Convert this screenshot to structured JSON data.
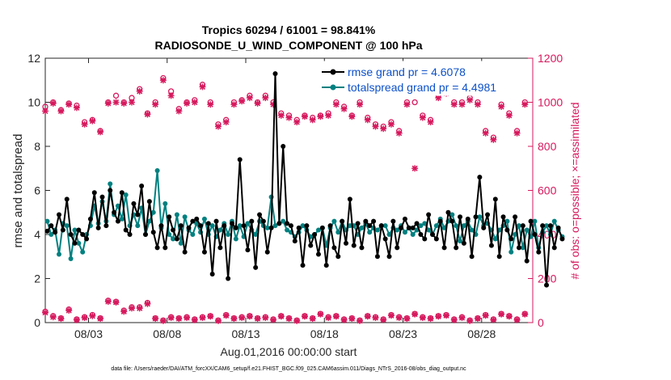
{
  "chart_data": {
    "type": "line",
    "title_line1": "Tropics 60294 / 61001 = 98.841%",
    "title_line2": "RADIOSONDE_U_WIND_COMPONENT @ 100 hPa",
    "xlabel": "Aug.01,2016 00:00:00 start",
    "ylabel_left": "rmse and totalspread",
    "ylabel_right": "# of obs: o=possible; ×=assimilated",
    "footer": "data file: /Users/raeder/DAI/ATM_forcXX/CAM6_setup/f.e21.FHIST_BGC.f09_025.CAM6assim.011/Diags_NTrS_2016-08/obs_diag_output.nc",
    "x_ticks": [
      {
        "t": 2.75,
        "label": "08/03"
      },
      {
        "t": 7.75,
        "label": "08/08"
      },
      {
        "t": 12.75,
        "label": "08/13"
      },
      {
        "t": 17.75,
        "label": "08/18"
      },
      {
        "t": 22.75,
        "label": "08/23"
      },
      {
        "t": 27.75,
        "label": "08/28"
      }
    ],
    "xlim": [
      0.0,
      31.0
    ],
    "ylim_left": [
      0,
      12
    ],
    "yticks_left": [
      0,
      2,
      4,
      6,
      8,
      10,
      12
    ],
    "ylim_right": [
      0,
      1200
    ],
    "yticks_right": [
      0,
      200,
      400,
      600,
      800,
      1000,
      1200
    ],
    "colors": {
      "rmse": "#000000",
      "spread": "#008080",
      "obs": "#d6185c",
      "legend_text": "#0c50c8"
    },
    "series": [
      {
        "name": "rmse grand pr = 4.6078",
        "axis": "left",
        "color": "#000000",
        "values": [
          4.15,
          4.4,
          4.1,
          4.9,
          4.2,
          5.6,
          4.0,
          3.6,
          4.2,
          4.0,
          3.8,
          4.7,
          5.9,
          4.3,
          5.7,
          4.4,
          6.0,
          5.0,
          4.6,
          5.9,
          4.2,
          4.0,
          5.4,
          4.9,
          6.2,
          4.0,
          5.5,
          4.1,
          3.4,
          4.4,
          3.4,
          4.8,
          4.2,
          3.8,
          4.4,
          3.2,
          4.3,
          4.6,
          4.7,
          4.4,
          3.2,
          4.5,
          2.2,
          4.6,
          3.4,
          4.4,
          2.0,
          4.5,
          4.3,
          7.4,
          4.4,
          3.3,
          4.6,
          2.5,
          4.9,
          4.6,
          3.2,
          4.3,
          11.3,
          4.5,
          8.0,
          4.5,
          4.4,
          3.7,
          4.3,
          2.6,
          4.4,
          3.5,
          4.0,
          3.1,
          4.3,
          2.6,
          4.4,
          3.4,
          3.0,
          4.6,
          3.6,
          5.6,
          3.5,
          4.5,
          3.4,
          4.6,
          4.4,
          4.6,
          3.0,
          4.4,
          3.8,
          3.0,
          4.6,
          3.4,
          4.3,
          4.7,
          4.3,
          4.3,
          4.5,
          4.0,
          3.8,
          4.9,
          4.0,
          3.8,
          4.6,
          3.4,
          5.0,
          4.6,
          3.4,
          4.8,
          3.6,
          4.7,
          3.0,
          4.8,
          6.6,
          4.3,
          4.9,
          3.5,
          5.6,
          3.0,
          4.8,
          4.2,
          3.8,
          4.8,
          3.4,
          4.4,
          2.8,
          4.6,
          4.0,
          3.2,
          4.4,
          1.7,
          4.4,
          3.4,
          4.3,
          3.8
        ]
      },
      {
        "name": "totalspread grand pr = 4.4981",
        "axis": "left",
        "color": "#008080",
        "values": [
          4.6,
          4.0,
          4.2,
          3.1,
          4.5,
          4.4,
          2.9,
          4.2,
          3.6,
          3.2,
          4.0,
          4.4,
          5.3,
          4.5,
          5.5,
          4.6,
          6.3,
          4.9,
          5.3,
          4.7,
          5.8,
          4.4,
          4.9,
          4.4,
          5.2,
          4.0,
          4.6,
          5.0,
          6.9,
          4.3,
          5.4,
          4.0,
          3.8,
          4.9,
          3.6,
          4.8,
          4.2,
          4.0,
          4.5,
          4.1,
          4.7,
          4.0,
          4.4,
          3.9,
          4.2,
          4.5,
          4.0,
          4.6,
          3.8,
          4.4,
          3.9,
          4.5,
          4.2,
          4.0,
          4.6,
          4.4,
          4.3,
          5.7,
          4.4,
          4.5,
          4.6,
          4.2,
          4.1,
          3.9,
          4.1,
          4.4,
          4.2,
          3.9,
          4.0,
          4.2,
          4.3,
          3.5,
          4.3,
          4.6,
          4.1,
          4.6,
          4.2,
          4.4,
          4.4,
          4.0,
          4.3,
          4.5,
          4.1,
          4.3,
          4.2,
          4.4,
          4.4,
          4.0,
          4.3,
          4.2,
          4.4,
          4.1,
          4.3,
          4.0,
          4.2,
          4.4,
          4.5,
          4.2,
          4.0,
          4.4,
          4.7,
          4.3,
          4.6,
          4.9,
          4.4,
          3.7,
          4.4,
          4.6,
          4.2,
          4.0,
          4.8,
          4.4,
          4.5,
          4.2,
          3.8,
          4.2,
          4.4,
          4.6,
          3.2,
          4.0,
          4.4,
          3.4,
          4.2,
          3.9,
          4.6,
          3.4,
          4.1,
          4.4,
          4.0,
          4.6,
          4.2,
          3.9
        ]
      }
    ],
    "obs_possible": {
      "axis": "right",
      "marker": "o",
      "morning_t": [
        0.0,
        0.5,
        1.0,
        1.5,
        2.0,
        2.5,
        3.0,
        3.5,
        4.0,
        4.5,
        5.0,
        5.5,
        6.0,
        6.5,
        7.0,
        7.5,
        8.0,
        8.5,
        9.0,
        9.5,
        10.0,
        10.5,
        11.0,
        11.5,
        12.0,
        12.5,
        13.0,
        13.5,
        14.0,
        14.5,
        15.0,
        15.5,
        16.0,
        16.5,
        17.0,
        17.5,
        18.0,
        18.5,
        19.0,
        19.5,
        20.0,
        20.5,
        21.0,
        21.5,
        22.0,
        22.5,
        23.0,
        23.5,
        24.0,
        24.5,
        25.0,
        25.5,
        26.0,
        26.5,
        27.0,
        27.5,
        28.0,
        28.5,
        29.0,
        29.5,
        30.0,
        30.5
      ],
      "values": [
        980,
        1000,
        965,
        995,
        985,
        910,
        920,
        870,
        1000,
        1030,
        1000,
        1020,
        1060,
        950,
        1000,
        1110,
        1050,
        970,
        1000,
        1010,
        1080,
        1000,
        900,
        920,
        1000,
        1010,
        1030,
        1000,
        1030,
        1000,
        950,
        940,
        920,
        940,
        930,
        940,
        950,
        1000,
        980,
        940,
        1000,
        930,
        900,
        890,
        910,
        870,
        1000,
        1000,
        940,
        920,
        1030,
        1050,
        1000,
        1000,
        1020,
        1000,
        870,
        840,
        990,
        950,
        870,
        1000
      ]
    },
    "obs_assimilated": {
      "axis": "right",
      "marker": "x",
      "values": [
        960,
        995,
        960,
        990,
        975,
        900,
        915,
        865,
        995,
        1000,
        995,
        1000,
        1050,
        945,
        990,
        1100,
        1030,
        960,
        995,
        1000,
        1070,
        990,
        890,
        910,
        990,
        1005,
        1020,
        995,
        1020,
        990,
        940,
        930,
        910,
        935,
        920,
        935,
        940,
        990,
        970,
        935,
        990,
        920,
        890,
        880,
        900,
        860,
        990,
        700,
        930,
        910,
        1020,
        1040,
        990,
        990,
        1010,
        990,
        860,
        830,
        980,
        940,
        860,
        990
      ]
    },
    "obs_low_possible": {
      "axis": "right",
      "values": [
        50,
        30,
        20,
        60,
        15,
        25,
        35,
        20,
        100,
        95,
        55,
        70,
        70,
        90,
        20,
        10,
        25,
        20,
        25,
        15,
        25,
        30,
        10,
        35,
        20,
        25,
        30,
        20,
        25,
        15,
        30,
        20,
        10,
        30,
        20,
        40,
        25,
        30,
        15,
        20,
        10,
        30,
        25,
        15,
        35,
        25,
        20,
        40,
        25,
        20,
        30,
        35,
        15,
        25,
        10,
        20,
        35,
        15,
        40,
        30,
        15,
        40
      ]
    },
    "obs_low_assimilated": {
      "axis": "right",
      "values": [
        45,
        25,
        18,
        55,
        12,
        22,
        30,
        18,
        95,
        92,
        50,
        65,
        65,
        85,
        18,
        8,
        22,
        18,
        22,
        12,
        22,
        28,
        8,
        32,
        18,
        22,
        28,
        18,
        22,
        12,
        28,
        18,
        8,
        28,
        18,
        38,
        22,
        28,
        12,
        18,
        8,
        28,
        22,
        12,
        32,
        22,
        18,
        38,
        22,
        18,
        28,
        32,
        12,
        22,
        8,
        18,
        32,
        12,
        38,
        28,
        12,
        38
      ]
    },
    "legend": {
      "position": "top-right",
      "entries": [
        "rmse grand pr = 4.6078",
        "totalspread grand pr = 4.4981"
      ]
    }
  }
}
